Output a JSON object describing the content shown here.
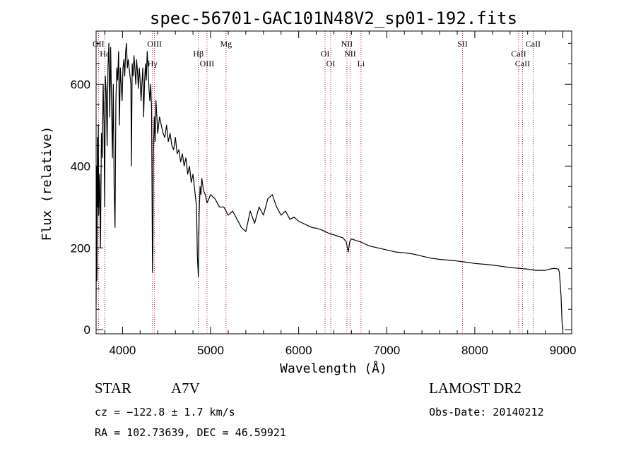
{
  "chart_data": {
    "type": "line",
    "title": "spec-56701-GAC101N48V2_sp01-192.fits",
    "xlabel": "Wavelength (Å)",
    "ylabel": "Flux (relative)",
    "xlim": [
      3700,
      9100
    ],
    "ylim": [
      -10,
      730
    ],
    "xticks": [
      4000,
      5000,
      6000,
      7000,
      8000,
      9000
    ],
    "yticks": [
      0,
      200,
      400,
      600
    ],
    "grid": false,
    "series": [
      {
        "x": [
          3700,
          3705,
          3710,
          3715,
          3720,
          3725,
          3730,
          3740,
          3750,
          3760,
          3770,
          3780,
          3790,
          3797,
          3805,
          3815,
          3825,
          3835,
          3845,
          3855,
          3865,
          3875,
          3885,
          3895,
          3905,
          3915,
          3925,
          3935,
          3945,
          3955,
          3965,
          3975,
          3985,
          3995,
          4005,
          4015,
          4025,
          4035,
          4045,
          4055,
          4065,
          4075,
          4085,
          4095,
          4101,
          4110,
          4120,
          4130,
          4140,
          4150,
          4160,
          4170,
          4180,
          4190,
          4200,
          4210,
          4220,
          4230,
          4240,
          4250,
          4260,
          4270,
          4280,
          4290,
          4300,
          4310,
          4320,
          4330,
          4340,
          4345,
          4350,
          4360,
          4370,
          4380,
          4390,
          4400,
          4420,
          4440,
          4460,
          4480,
          4500,
          4520,
          4540,
          4560,
          4580,
          4600,
          4620,
          4640,
          4660,
          4680,
          4700,
          4720,
          4740,
          4760,
          4780,
          4800,
          4820,
          4840,
          4850,
          4861,
          4870,
          4880,
          4890,
          4900,
          4920,
          4940,
          4960,
          4980,
          5000,
          5050,
          5100,
          5150,
          5200,
          5250,
          5300,
          5350,
          5400,
          5450,
          5500,
          5550,
          5600,
          5650,
          5700,
          5750,
          5800,
          5850,
          5900,
          5950,
          6000,
          6050,
          6100,
          6150,
          6200,
          6250,
          6300,
          6350,
          6400,
          6450,
          6500,
          6540,
          6563,
          6580,
          6600,
          6650,
          6700,
          6750,
          6800,
          6900,
          7000,
          7100,
          7200,
          7300,
          7400,
          7500,
          7600,
          7700,
          7800,
          7900,
          8000,
          8100,
          8200,
          8300,
          8400,
          8500,
          8600,
          8700,
          8800,
          8850,
          8900,
          8950,
          8960,
          8980,
          8990,
          9000,
          9005
        ],
        "values": [
          60,
          400,
          120,
          470,
          300,
          500,
          280,
          380,
          200,
          480,
          420,
          600,
          500,
          300,
          620,
          580,
          450,
          640,
          700,
          520,
          690,
          560,
          420,
          600,
          350,
          250,
          560,
          640,
          610,
          680,
          500,
          640,
          600,
          560,
          640,
          660,
          620,
          680,
          700,
          640,
          660,
          640,
          620,
          600,
          400,
          650,
          620,
          670,
          640,
          600,
          660,
          630,
          590,
          640,
          610,
          560,
          600,
          640,
          520,
          600,
          650,
          610,
          680,
          640,
          590,
          560,
          600,
          540,
          140,
          200,
          420,
          520,
          460,
          560,
          520,
          480,
          520,
          500,
          480,
          470,
          500,
          460,
          480,
          450,
          440,
          470,
          430,
          440,
          410,
          430,
          400,
          420,
          380,
          400,
          360,
          380,
          340,
          300,
          180,
          130,
          280,
          350,
          330,
          370,
          340,
          330,
          310,
          320,
          330,
          320,
          300,
          300,
          280,
          290,
          270,
          250,
          240,
          290,
          260,
          300,
          280,
          320,
          330,
          300,
          280,
          290,
          270,
          275,
          265,
          260,
          255,
          250,
          248,
          245,
          240,
          235,
          232,
          228,
          225,
          215,
          190,
          215,
          222,
          218,
          215,
          210,
          205,
          200,
          195,
          190,
          188,
          185,
          180,
          175,
          172,
          170,
          168,
          165,
          162,
          160,
          158,
          155,
          152,
          150,
          148,
          145,
          145,
          148,
          150,
          148,
          140,
          80,
          20,
          0,
          0
        ]
      }
    ],
    "spectral_lines": [
      {
        "label": "OII",
        "x": 3727
      },
      {
        "label": "Hε",
        "x": 3797
      },
      {
        "label": "Hγ",
        "x": 4340
      },
      {
        "label": "OIII",
        "x": 4363
      },
      {
        "label": "Hβ",
        "x": 4861
      },
      {
        "label": "OIII",
        "x": 4959
      },
      {
        "label": "Mg",
        "x": 5175
      },
      {
        "label": "OI",
        "x": 6300
      },
      {
        "label": "OI",
        "x": 6364
      },
      {
        "label": "NII",
        "x": 6548
      },
      {
        "label": "NII",
        "x": 6584
      },
      {
        "label": "Li",
        "x": 6708
      },
      {
        "label": "SII",
        "x": 7860
      },
      {
        "label": "CaII",
        "x": 8498
      },
      {
        "label": "CaII",
        "x": 8542
      },
      {
        "label": "CaII",
        "x": 8662
      }
    ]
  },
  "info": {
    "object_type": "STAR",
    "spectral_class": "A7V",
    "survey": "LAMOST DR2",
    "cz": "cz = −122.8 ± 1.7 km/s",
    "obs_date": "Obs-Date: 20140212",
    "coords": "RA = 102.73639, DEC =  46.59921"
  },
  "colors": {
    "spectrum": "#000000",
    "line_marker": "#b22222",
    "axes": "#000000"
  }
}
